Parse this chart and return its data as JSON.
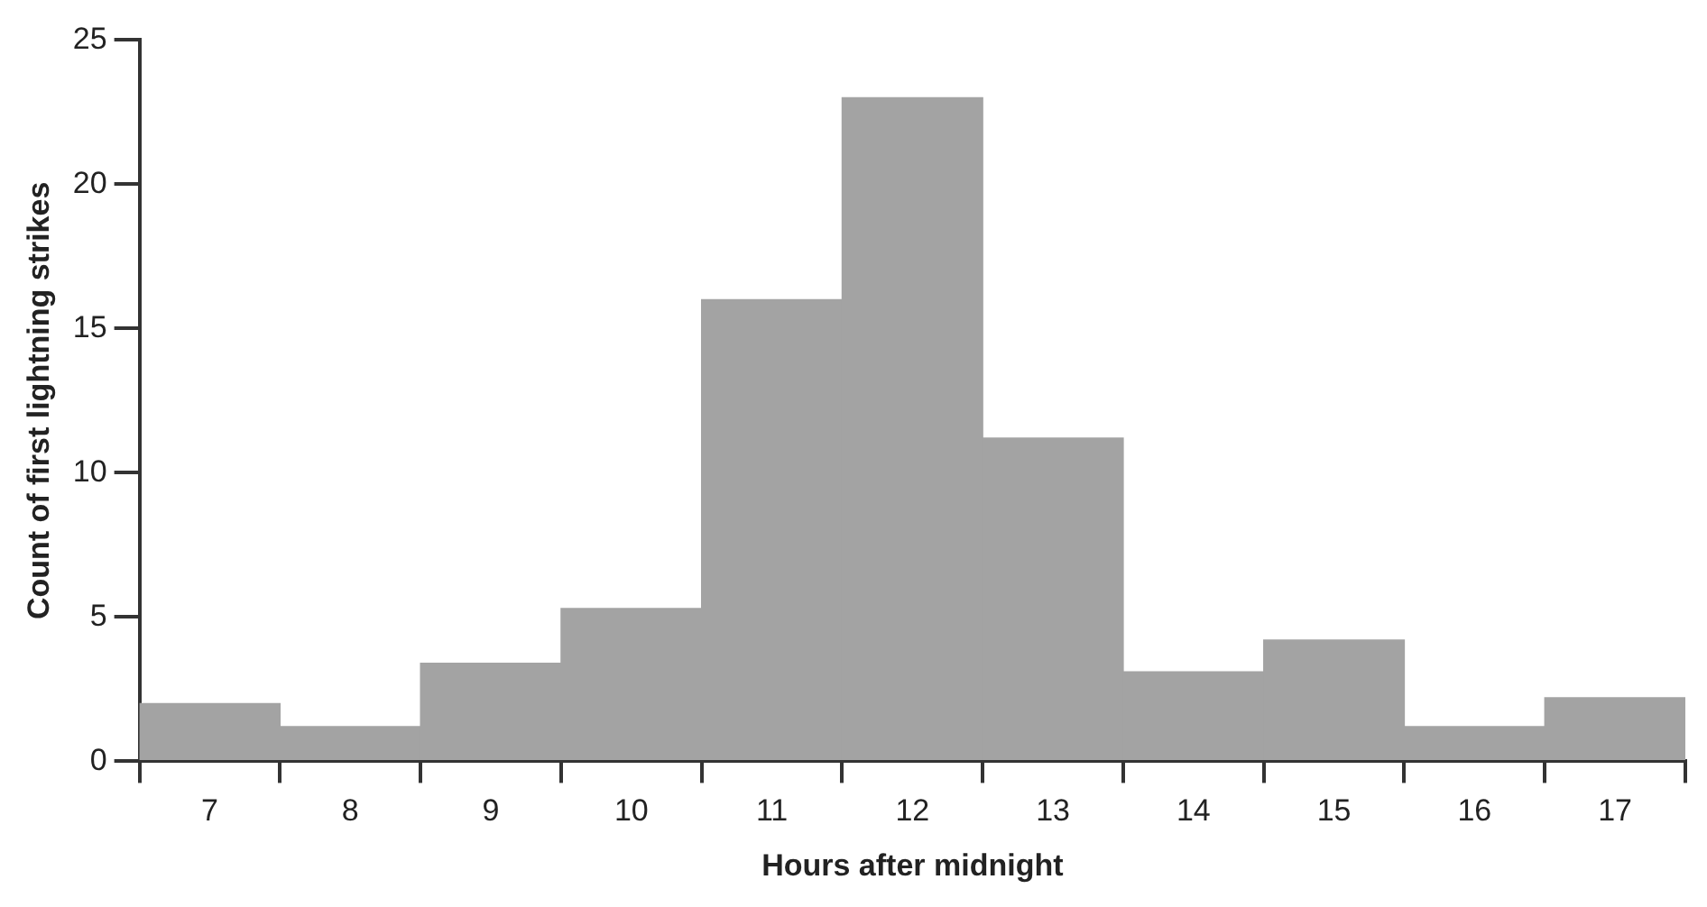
{
  "chart_data": {
    "type": "histogram",
    "xlabel": "Hours after midnight",
    "ylabel": "Count of first lightning strikes",
    "bins": [
      6.5,
      7.5,
      8.5,
      9.5,
      10.5,
      11.5,
      12.5,
      13.5,
      14.5,
      15.5,
      16.5,
      17.5
    ],
    "values": [
      2,
      1.2,
      3.4,
      5.3,
      16,
      23,
      11.2,
      3.1,
      4.2,
      1.2,
      2.2
    ],
    "color": "#a3a3a3",
    "xlim": [
      6.5,
      17.5
    ],
    "xticks": [
      7,
      8,
      9,
      10,
      11,
      12,
      13,
      14,
      15,
      16,
      17
    ],
    "ylim": [
      0,
      25
    ],
    "yticks": [
      0,
      5,
      10,
      15,
      20,
      25
    ],
    "grid": false,
    "legend": false
  }
}
